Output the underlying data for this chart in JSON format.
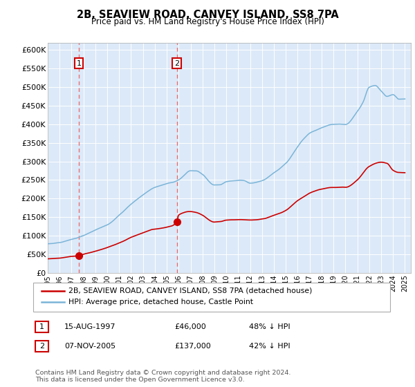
{
  "title1": "2B, SEAVIEW ROAD, CANVEY ISLAND, SS8 7PA",
  "title2": "Price paid vs. HM Land Registry's House Price Index (HPI)",
  "ylabel_ticks": [
    "£0",
    "£50K",
    "£100K",
    "£150K",
    "£200K",
    "£250K",
    "£300K",
    "£350K",
    "£400K",
    "£450K",
    "£500K",
    "£550K",
    "£600K"
  ],
  "ytick_vals": [
    0,
    50000,
    100000,
    150000,
    200000,
    250000,
    300000,
    350000,
    400000,
    450000,
    500000,
    550000,
    600000
  ],
  "sale1_year": 1997.62,
  "sale1_price": 46000,
  "sale2_year": 2005.85,
  "sale2_price": 137000,
  "legend_line1": "2B, SEAVIEW ROAD, CANVEY ISLAND, SS8 7PA (detached house)",
  "legend_line2": "HPI: Average price, detached house, Castle Point",
  "table_row1": [
    "1",
    "15-AUG-1997",
    "£46,000",
    "48% ↓ HPI"
  ],
  "table_row2": [
    "2",
    "07-NOV-2005",
    "£137,000",
    "42% ↓ HPI"
  ],
  "footer": "Contains HM Land Registry data © Crown copyright and database right 2024.\nThis data is licensed under the Open Government Licence v3.0.",
  "bg_color": "#dce9f8",
  "grid_color": "#ffffff",
  "line_color_hpi": "#7ab4d8",
  "line_color_price": "#cc0000",
  "vline_color": "#e87070",
  "dot_color": "#cc0000",
  "xmin": 1995,
  "xmax": 2025.5,
  "ymin": 0,
  "ymax": 620000,
  "hpi_keypoints_x": [
    1995,
    1996,
    1997,
    1998,
    1999,
    2000,
    2001,
    2002,
    2003,
    2004,
    2005,
    2006,
    2007,
    2007.5,
    2008,
    2009,
    2009.5,
    2010,
    2010.5,
    2011,
    2011.5,
    2012,
    2013,
    2014,
    2015,
    2016,
    2016.5,
    2017,
    2018,
    2019,
    2020,
    2021,
    2021.5,
    2022,
    2022.5,
    2023,
    2023.5,
    2024,
    2024.5,
    2025
  ],
  "hpi_keypoints_y": [
    78000,
    82000,
    90000,
    100000,
    115000,
    130000,
    155000,
    185000,
    210000,
    230000,
    240000,
    250000,
    275000,
    275000,
    265000,
    237000,
    238000,
    245000,
    248000,
    250000,
    248000,
    242000,
    248000,
    270000,
    295000,
    340000,
    360000,
    375000,
    390000,
    400000,
    400000,
    435000,
    460000,
    500000,
    505000,
    490000,
    475000,
    480000,
    468000,
    468000
  ],
  "price_keypoints_x": [
    1995,
    1996,
    1997,
    1997.62,
    1998,
    1999,
    2000,
    2001,
    2002,
    2003,
    2004,
    2005,
    2005.85,
    2006,
    2007,
    2007.5,
    2008,
    2009,
    2009.5,
    2010,
    2011,
    2012,
    2013,
    2014,
    2015,
    2016,
    2016.5,
    2017,
    2018,
    2019,
    2020,
    2021,
    2022,
    2023,
    2023.5,
    2024,
    2024.5,
    2025
  ],
  "price_keypoints_y": [
    38000,
    40000,
    44000,
    46000,
    50000,
    58000,
    68000,
    80000,
    95000,
    108000,
    118000,
    123000,
    137000,
    155000,
    165000,
    162000,
    155000,
    137000,
    138000,
    142000,
    143000,
    142000,
    145000,
    155000,
    168000,
    195000,
    205000,
    215000,
    225000,
    230000,
    230000,
    250000,
    287000,
    298000,
    295000,
    276000,
    270000,
    270000
  ]
}
